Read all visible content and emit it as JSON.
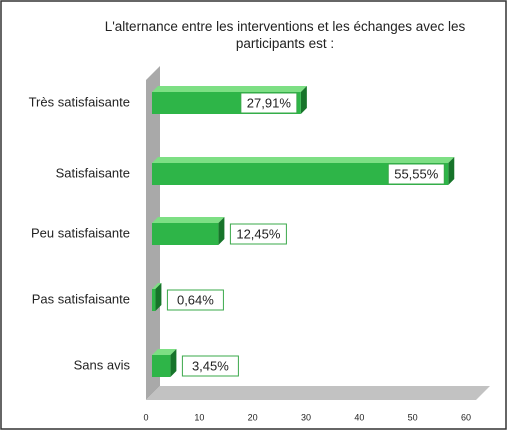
{
  "chart_data": {
    "type": "bar3d_horizontal",
    "title": "L'alternance entre les interventions et les échanges avec les participants est :",
    "categories": [
      "Très satisfaisante",
      "Satisfaisante",
      "Peu satisfaisante",
      "Pas satisfaisante",
      "Sans avis"
    ],
    "values": [
      27.91,
      55.55,
      12.45,
      0.64,
      3.45
    ],
    "value_labels": [
      "27,91%",
      "55,55%",
      "12,45%",
      "0,64%",
      "3,45%"
    ],
    "color": "#2eb548",
    "xlim": [
      0,
      60
    ],
    "xticks": [
      0,
      10,
      20,
      30,
      40,
      50,
      60
    ]
  }
}
